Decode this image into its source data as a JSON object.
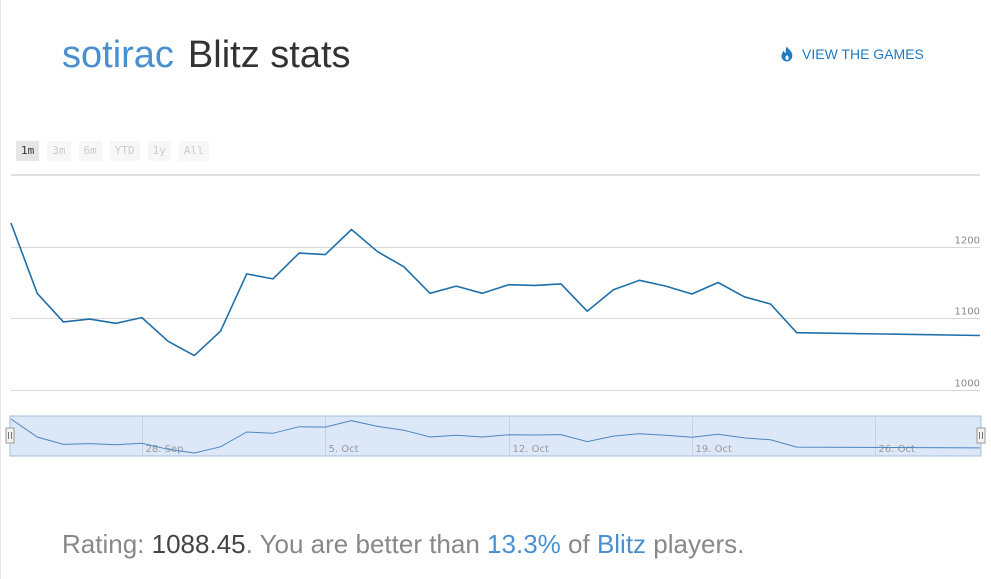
{
  "header": {
    "username": "sotirac",
    "title": "Blitz stats",
    "link_label": "VIEW THE GAMES",
    "link_icon": "flame-icon"
  },
  "range_selector": {
    "buttons": [
      "1m",
      "3m",
      "6m",
      "YTD",
      "1y",
      "All"
    ],
    "selected": "1m"
  },
  "stats": {
    "rating_label": "Rating:",
    "rating_value": "1088.45",
    "better_prefix": ". You are better than",
    "percent": "13.3%",
    "of_label": "of",
    "game_type": "Blitz",
    "suffix": "players."
  },
  "colors": {
    "accent": "#4a90d0",
    "line": "#1f6fa8",
    "navigator_fill": "#dce8f7"
  },
  "chart_data": {
    "type": "line",
    "title": "",
    "xlabel": "",
    "ylabel": "",
    "ylim": [
      1000,
      1300
    ],
    "yticks": [
      1000,
      1100,
      1200
    ],
    "grid": true,
    "x_start": "2014-09-23",
    "x_end": "2014-10-30",
    "navigator_ticks": [
      "28. Sep",
      "5. Oct",
      "12. Oct",
      "19. Oct",
      "26. Oct"
    ],
    "navigator_tick_dates": [
      "2014-09-28",
      "2014-10-05",
      "2014-10-12",
      "2014-10-19",
      "2014-10-26"
    ],
    "series": [
      {
        "x": [
          "2014-09-23",
          "2014-09-24",
          "2014-09-25",
          "2014-09-26",
          "2014-09-27",
          "2014-09-28",
          "2014-09-29",
          "2014-09-30",
          "2014-10-01",
          "2014-10-02",
          "2014-10-03",
          "2014-10-04",
          "2014-10-05",
          "2014-10-06",
          "2014-10-07",
          "2014-10-08",
          "2014-10-09",
          "2014-10-10",
          "2014-10-11",
          "2014-10-12",
          "2014-10-13",
          "2014-10-14",
          "2014-10-15",
          "2014-10-16",
          "2014-10-17",
          "2014-10-18",
          "2014-10-19",
          "2014-10-20",
          "2014-10-21",
          "2014-10-22",
          "2014-10-23",
          "2014-10-30"
        ],
        "values": [
          1233,
          1135,
          1095,
          1099,
          1093,
          1101,
          1068,
          1048,
          1082,
          1162,
          1155,
          1191,
          1189,
          1224,
          1193,
          1172,
          1135,
          1145,
          1135,
          1147,
          1146,
          1148,
          1110,
          1140,
          1153,
          1145,
          1134,
          1150,
          1130,
          1120,
          1080,
          1076
        ]
      }
    ]
  }
}
